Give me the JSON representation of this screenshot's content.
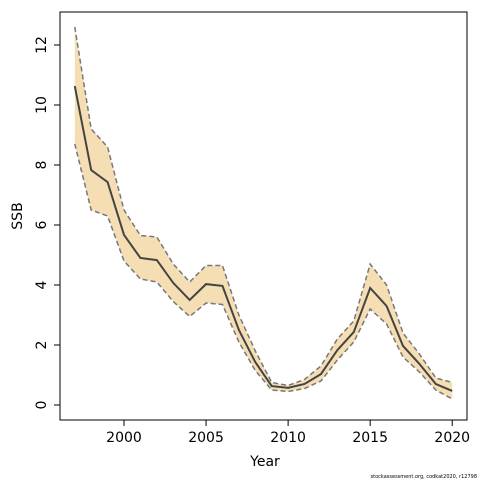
{
  "chart_data": {
    "type": "line",
    "xlabel": "Year",
    "ylabel": "SSB",
    "footnote": "stockassessment.org, codkat2020, r12798",
    "x": [
      1997,
      1998,
      1999,
      2000,
      2001,
      2002,
      2003,
      2004,
      2005,
      2006,
      2007,
      2008,
      2009,
      2010,
      2011,
      2012,
      2013,
      2014,
      2015,
      2016,
      2017,
      2018,
      2019,
      2020
    ],
    "series": [
      {
        "color": "#444444",
        "band_color": "#f5deb3",
        "band_line_color": "#777777",
        "values": [
          10.63,
          7.83,
          7.43,
          5.67,
          4.9,
          4.83,
          4.07,
          3.5,
          4.03,
          3.97,
          2.5,
          1.43,
          0.63,
          0.57,
          0.7,
          1.03,
          1.83,
          2.43,
          3.9,
          3.3,
          1.97,
          1.37,
          0.7,
          0.47
        ],
        "upper": [
          12.6,
          9.2,
          8.6,
          6.5,
          5.65,
          5.6,
          4.7,
          4.1,
          4.65,
          4.65,
          3.0,
          1.8,
          0.75,
          0.65,
          0.85,
          1.3,
          2.2,
          2.8,
          4.7,
          4.0,
          2.4,
          1.7,
          0.9,
          0.75
        ],
        "lower": [
          8.7,
          6.5,
          6.3,
          4.8,
          4.2,
          4.1,
          3.45,
          2.95,
          3.4,
          3.35,
          2.1,
          1.15,
          0.5,
          0.45,
          0.55,
          0.8,
          1.5,
          2.1,
          3.2,
          2.7,
          1.6,
          1.1,
          0.5,
          0.2
        ]
      }
    ],
    "xlim": [
      1996.1,
      2020.9
    ],
    "ylim": [
      -0.5,
      13.1
    ],
    "xticks": [
      2000,
      2005,
      2010,
      2015,
      2020
    ],
    "yticks": [
      0,
      2,
      4,
      6,
      8,
      10,
      12
    ]
  }
}
